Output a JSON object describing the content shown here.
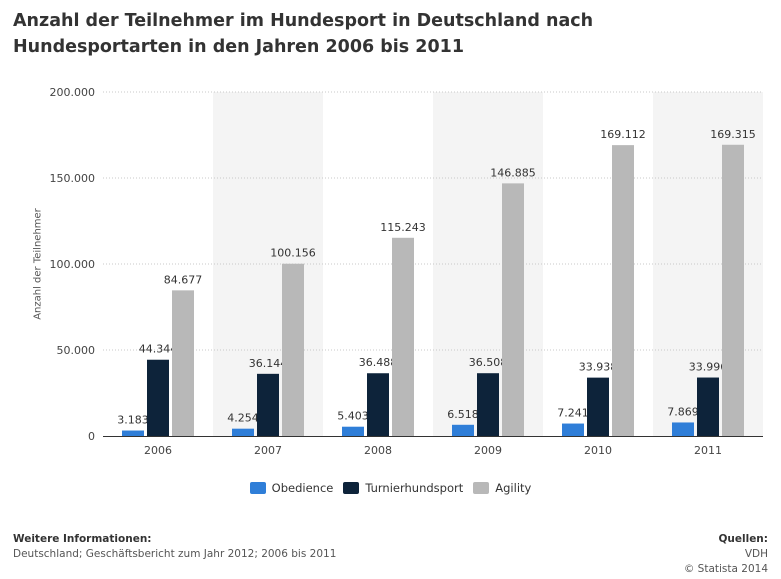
{
  "title": "Anzahl der Teilnehmer im Hundesport in Deutschland nach Hundesportarten in den Jahren 2006 bis 2011",
  "chart_data": {
    "type": "bar",
    "title": "Anzahl der Teilnehmer im Hundesport in Deutschland nach Hundesportarten in den Jahren 2006 bis 2011",
    "xlabel": "",
    "ylabel": "Anzahl der Teilnehmer",
    "ylim": [
      0,
      200000
    ],
    "yticks": [
      0,
      50000,
      100000,
      150000,
      200000
    ],
    "ytick_labels": [
      "0",
      "50.000",
      "100.000",
      "150.000",
      "200.000"
    ],
    "categories": [
      "2006",
      "2007",
      "2008",
      "2009",
      "2010",
      "2011"
    ],
    "series": [
      {
        "name": "Obedience",
        "color": "#2f7ed8",
        "values": [
          3183,
          4254,
          5403,
          6518,
          7241,
          7869
        ],
        "labels": [
          "3.183",
          "4.254",
          "5.403",
          "6.518",
          "7.241",
          "7.869"
        ]
      },
      {
        "name": "Turnierhundsport",
        "color": "#0d233a",
        "values": [
          44344,
          36144,
          36488,
          36508,
          33938,
          33996
        ],
        "labels": [
          "44.344",
          "36.144",
          "36.488",
          "36.508",
          "33.938",
          "33.996"
        ]
      },
      {
        "name": "Agility",
        "color": "#b8b8b8",
        "values": [
          84677,
          100156,
          115243,
          146885,
          169112,
          169315
        ],
        "labels": [
          "84.677",
          "100.156",
          "115.243",
          "146.885",
          "169.112",
          "169.315"
        ]
      }
    ],
    "grid": true,
    "alternate_band_color": "#f4f4f4",
    "legend_position": "bottom"
  },
  "footer": {
    "info_heading": "Weitere Informationen:",
    "info_text": "Deutschland; Geschäftsbericht zum Jahr 2012; 2006 bis 2011",
    "sources_heading": "Quellen:",
    "sources_text": "VDH",
    "copyright": "© Statista 2014"
  }
}
